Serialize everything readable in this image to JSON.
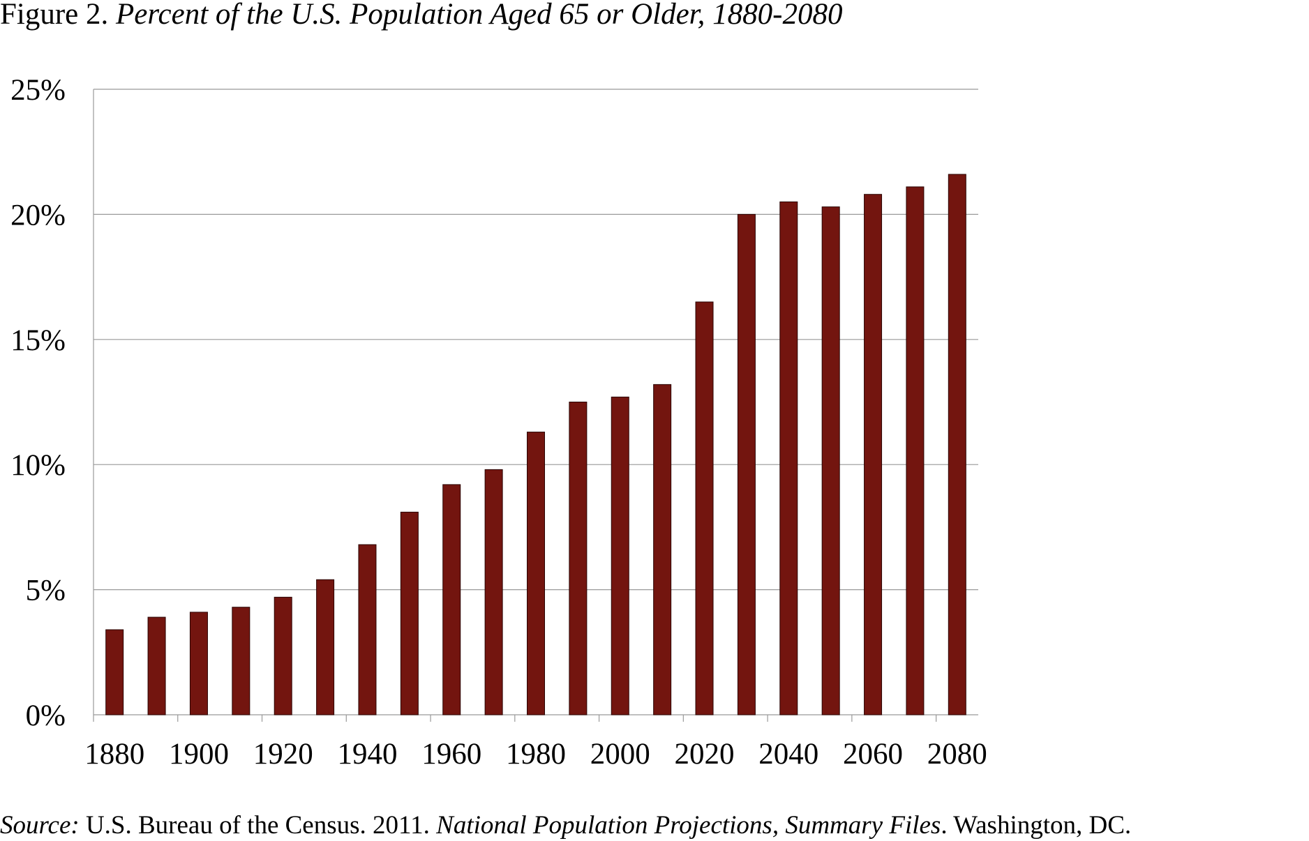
{
  "chart_data": {
    "type": "bar",
    "title_prefix": "Figure 2.",
    "title": "Percent of the U.S. Population Aged 65 or Older, 1880-2080",
    "categories": [
      "1880",
      "1890",
      "1900",
      "1910",
      "1920",
      "1930",
      "1940",
      "1950",
      "1960",
      "1970",
      "1980",
      "1990",
      "2000",
      "2010",
      "2020",
      "2030",
      "2040",
      "2050",
      "2060",
      "2070",
      "2080"
    ],
    "values": [
      3.4,
      3.9,
      4.1,
      4.3,
      4.7,
      5.4,
      6.8,
      8.1,
      9.2,
      9.8,
      11.3,
      12.5,
      12.7,
      13.2,
      16.5,
      20.0,
      20.5,
      20.3,
      20.8,
      21.1,
      21.6
    ],
    "x_tick_labels": [
      "1880",
      "1900",
      "1920",
      "1940",
      "1960",
      "1980",
      "2000",
      "2020",
      "2040",
      "2060",
      "2080"
    ],
    "y_tick_labels": [
      "0%",
      "5%",
      "10%",
      "15%",
      "20%",
      "25%"
    ],
    "y_ticks": [
      0,
      5,
      10,
      15,
      20,
      25
    ],
    "ylim": [
      0,
      25
    ],
    "xlabel": "",
    "ylabel": "",
    "grid": true,
    "bar_color": "#73150f",
    "source": {
      "label": "Source:",
      "text1": " U.S. Bureau of the Census. 2011. ",
      "publication": "National Population Projections, Summary Files",
      "text2": ". Washington, DC."
    }
  }
}
